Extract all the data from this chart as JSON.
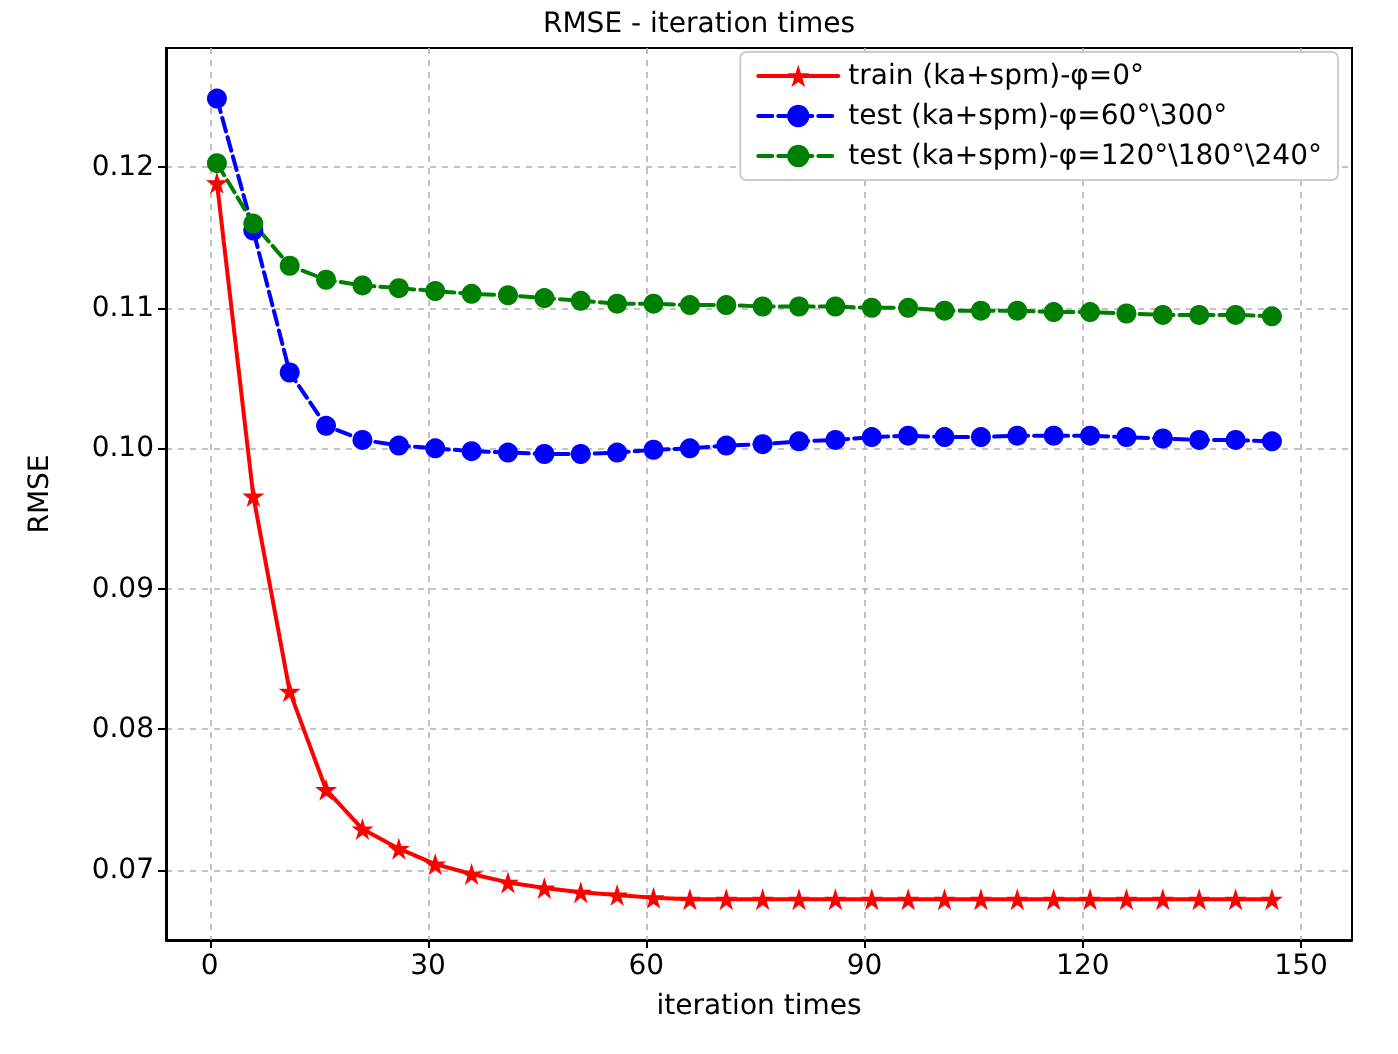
{
  "chart_data": {
    "type": "line",
    "title": "RMSE - iteration times",
    "xlabel": "iteration times",
    "ylabel": "RMSE",
    "x": [
      1,
      6,
      11,
      16,
      21,
      26,
      31,
      36,
      41,
      46,
      51,
      56,
      61,
      66,
      71,
      76,
      81,
      86,
      91,
      96,
      101,
      106,
      111,
      116,
      121,
      126,
      131,
      136,
      141,
      146
    ],
    "series": [
      {
        "name": "train (ka+spm)-φ=0°",
        "color": "#ff0000",
        "marker": "star",
        "line_style": "solid",
        "values": [
          0.1189,
          0.0966,
          0.0827,
          0.0757,
          0.0729,
          0.0715,
          0.0704,
          0.0697,
          0.0691,
          0.0687,
          0.0684,
          0.0682,
          0.068,
          0.0679,
          0.0679,
          0.0679,
          0.0679,
          0.0679,
          0.0679,
          0.0679,
          0.0679,
          0.0679,
          0.0679,
          0.0679,
          0.0679,
          0.0679,
          0.0679,
          0.0679,
          0.0679,
          0.0679
        ]
      },
      {
        "name": "test (ka+spm)-φ=60°\\300°",
        "color": "#0000ff",
        "marker": "circle",
        "line_style": "dashed",
        "values": [
          0.1249,
          0.1155,
          0.1054,
          0.1016,
          0.1006,
          0.1002,
          0.1,
          0.0998,
          0.0997,
          0.0996,
          0.0996,
          0.0997,
          0.0999,
          0.1,
          0.1002,
          0.1003,
          0.1005,
          0.1006,
          0.1008,
          0.1009,
          0.1008,
          0.1008,
          0.1009,
          0.1009,
          0.1009,
          0.1008,
          0.1007,
          0.1006,
          0.1006,
          0.1005
        ]
      },
      {
        "name": "test (ka+spm)-φ=120°\\180°\\240°",
        "color": "#008000",
        "marker": "circle",
        "line_style": "dashed",
        "values": [
          0.1203,
          0.116,
          0.113,
          0.112,
          0.1116,
          0.1114,
          0.1112,
          0.111,
          0.1109,
          0.1107,
          0.1105,
          0.1103,
          0.1103,
          0.1102,
          0.1102,
          0.1101,
          0.1101,
          0.1101,
          0.11,
          0.11,
          0.1098,
          0.1098,
          0.1098,
          0.1097,
          0.1097,
          0.1096,
          0.1095,
          0.1095,
          0.1095,
          0.1094
        ]
      }
    ],
    "xlim": [
      -6,
      157
    ],
    "xticks": [
      0,
      30,
      60,
      90,
      120,
      150
    ],
    "ylim": [
      0.065,
      0.1285
    ],
    "yticks": [
      {
        "value": 0.07,
        "label": "0.07"
      },
      {
        "value": 0.08,
        "label": "0.08"
      },
      {
        "value": 0.09,
        "label": "0.09"
      },
      {
        "value": 0.1,
        "label": "0.10"
      },
      {
        "value": 0.11,
        "label": "0.11"
      },
      {
        "value": 0.12,
        "label": "0.12"
      }
    ],
    "grid": true,
    "legend": "top right"
  }
}
